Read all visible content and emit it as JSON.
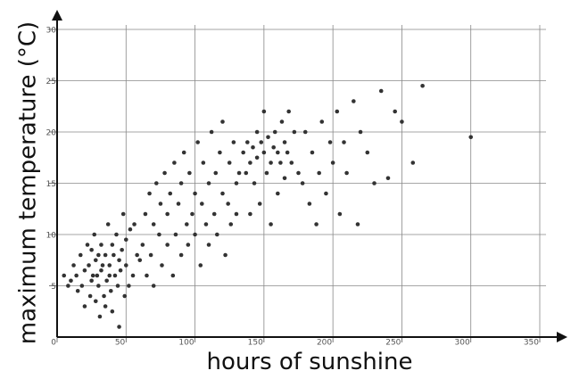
{
  "chart_data": {
    "type": "scatter",
    "x_label": "hours of sunshine",
    "y_label": "maximum temperature (°C)",
    "xlim": [
      0,
      350
    ],
    "xticks": [
      0,
      50,
      100,
      150,
      200,
      250,
      300,
      350
    ],
    "ylim": [
      0,
      30
    ],
    "yticks": [
      5,
      10,
      15,
      20,
      25,
      30
    ],
    "grid": true,
    "color": "#333333",
    "x": [
      5,
      8,
      10,
      12,
      14,
      15,
      17,
      18,
      20,
      20,
      22,
      23,
      24,
      25,
      25,
      26,
      27,
      28,
      28,
      29,
      30,
      30,
      31,
      32,
      32,
      33,
      34,
      35,
      35,
      36,
      37,
      38,
      38,
      39,
      40,
      40,
      41,
      42,
      43,
      44,
      45,
      45,
      46,
      47,
      48,
      49,
      50,
      50,
      52,
      53,
      55,
      56,
      58,
      60,
      62,
      64,
      65,
      67,
      68,
      70,
      70,
      72,
      74,
      75,
      76,
      78,
      80,
      80,
      82,
      84,
      85,
      86,
      88,
      90,
      90,
      92,
      94,
      95,
      96,
      98,
      100,
      100,
      102,
      104,
      105,
      106,
      108,
      110,
      110,
      112,
      114,
      115,
      116,
      118,
      120,
      120,
      122,
      124,
      125,
      126,
      128,
      130,
      130,
      132,
      135,
      137,
      138,
      140,
      140,
      142,
      143,
      145,
      145,
      147,
      148,
      150,
      150,
      152,
      153,
      155,
      155,
      157,
      158,
      160,
      160,
      162,
      163,
      165,
      165,
      167,
      168,
      170,
      172,
      175,
      178,
      180,
      183,
      185,
      188,
      190,
      192,
      195,
      198,
      200,
      203,
      205,
      208,
      210,
      215,
      218,
      220,
      225,
      230,
      235,
      240,
      245,
      250,
      258,
      265,
      300
    ],
    "values": [
      6,
      5,
      5.5,
      7,
      6,
      4.5,
      8,
      5,
      6.5,
      3,
      9,
      7,
      4,
      8.5,
      5.5,
      6,
      10,
      7.5,
      3.5,
      6,
      8,
      5,
      2,
      9,
      6.5,
      7,
      4,
      8,
      3,
      5.5,
      11,
      7,
      6,
      4.5,
      9,
      2.5,
      8,
      6,
      10,
      5,
      7.5,
      1,
      6.5,
      8.5,
      12,
      4,
      7,
      9.5,
      5,
      10.5,
      6,
      11,
      8,
      7.5,
      9,
      12,
      6,
      14,
      8,
      11,
      5,
      15,
      10,
      13,
      7,
      16,
      9,
      12,
      14,
      6,
      17,
      10,
      13,
      8,
      15,
      18,
      11,
      9,
      16,
      12,
      10,
      14,
      19,
      7,
      13,
      17,
      11,
      15,
      9,
      20,
      12,
      16,
      10,
      18,
      14,
      21,
      8,
      13,
      17,
      11,
      19,
      15,
      12,
      16,
      18,
      16,
      19,
      17,
      12,
      18.5,
      15,
      20,
      17.5,
      13,
      19,
      18,
      22,
      16,
      19.5,
      17,
      11,
      18.5,
      20,
      18,
      14,
      17,
      21,
      19,
      15.5,
      18,
      22,
      17,
      20,
      16,
      15,
      20,
      13,
      18,
      11,
      16,
      21,
      14,
      19,
      17,
      22,
      12,
      19,
      16,
      23,
      11,
      20,
      18,
      15,
      24,
      15.5,
      22,
      21,
      17,
      24.5,
      19.5
    ]
  }
}
